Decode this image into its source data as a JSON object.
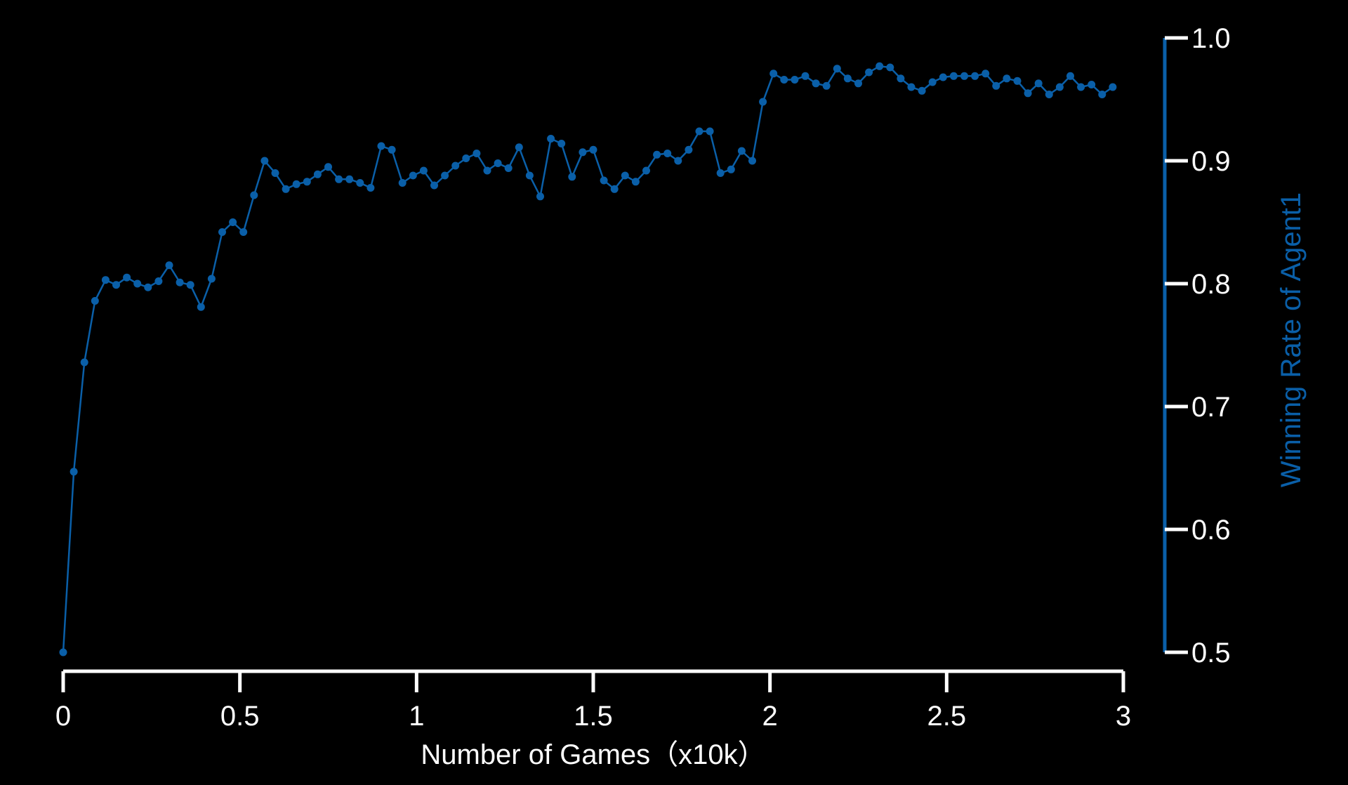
{
  "colors": {
    "background": "#000000",
    "axis": "#ffffff",
    "series": "#0a5fa8",
    "right_axis": "#0a5fa8",
    "right_axis_label": "#0a5fa8"
  },
  "chart_data": {
    "type": "line",
    "title": "",
    "xlabel": "Number of Games（x10k）",
    "ylabel": "Winning Rate of Agent1",
    "y_axis_side": "right",
    "xlim": [
      0,
      3
    ],
    "ylim": [
      0.5,
      1.0
    ],
    "x_ticks": [
      0,
      0.5,
      1,
      1.5,
      2,
      2.5,
      3
    ],
    "x_tick_labels": [
      "0",
      "0.5",
      "1",
      "1.5",
      "2",
      "2.5",
      "3"
    ],
    "y_ticks": [
      0.5,
      0.6,
      0.7,
      0.8,
      0.9,
      1.0
    ],
    "y_tick_labels": [
      "0.5",
      "0.6",
      "0.7",
      "0.8",
      "0.9",
      "1.0"
    ],
    "grid": false,
    "legend": "none",
    "marker": "circle",
    "series": [
      {
        "x": [
          0,
          0.03,
          0.06,
          0.09,
          0.12,
          0.15,
          0.18,
          0.21,
          0.24,
          0.27,
          0.3,
          0.33,
          0.36,
          0.39,
          0.42,
          0.45,
          0.48,
          0.51,
          0.54,
          0.57,
          0.6,
          0.63,
          0.66,
          0.69,
          0.72,
          0.75,
          0.78,
          0.81,
          0.84,
          0.87,
          0.9,
          0.93,
          0.96,
          0.99,
          1.02,
          1.05,
          1.08,
          1.11,
          1.14,
          1.17,
          1.2,
          1.23,
          1.26,
          1.29,
          1.32,
          1.35,
          1.38,
          1.41,
          1.44,
          1.47,
          1.5,
          1.53,
          1.56,
          1.59,
          1.62,
          1.65,
          1.68,
          1.71,
          1.74,
          1.77,
          1.8,
          1.83,
          1.86,
          1.89,
          1.92,
          1.95,
          1.98,
          2.01,
          2.04,
          2.07,
          2.1,
          2.13,
          2.16,
          2.19,
          2.22,
          2.25,
          2.28,
          2.31,
          2.34,
          2.37,
          2.4,
          2.43,
          2.46,
          2.49,
          2.52,
          2.55,
          2.58,
          2.61,
          2.64,
          2.67,
          2.7,
          2.73,
          2.76,
          2.79,
          2.82,
          2.85,
          2.88,
          2.91,
          2.94,
          2.97
        ],
        "values": [
          0.5,
          0.647,
          0.736,
          0.786,
          0.803,
          0.799,
          0.805,
          0.8,
          0.797,
          0.802,
          0.815,
          0.801,
          0.799,
          0.781,
          0.804,
          0.842,
          0.85,
          0.842,
          0.872,
          0.9,
          0.89,
          0.877,
          0.881,
          0.883,
          0.889,
          0.895,
          0.885,
          0.885,
          0.882,
          0.878,
          0.912,
          0.909,
          0.882,
          0.888,
          0.892,
          0.88,
          0.888,
          0.896,
          0.902,
          0.906,
          0.892,
          0.898,
          0.894,
          0.911,
          0.888,
          0.871,
          0.918,
          0.914,
          0.887,
          0.907,
          0.909,
          0.884,
          0.877,
          0.888,
          0.883,
          0.892,
          0.905,
          0.906,
          0.9,
          0.909,
          0.924,
          0.924,
          0.89,
          0.893,
          0.908,
          0.9,
          0.948,
          0.971,
          0.966,
          0.966,
          0.969,
          0.963,
          0.961,
          0.975,
          0.967,
          0.963,
          0.972,
          0.977,
          0.976,
          0.967,
          0.96,
          0.957,
          0.964,
          0.968,
          0.969,
          0.969,
          0.969,
          0.971,
          0.961,
          0.967,
          0.965,
          0.955,
          0.963,
          0.954,
          0.96,
          0.969,
          0.96,
          0.962,
          0.954,
          0.96
        ]
      }
    ]
  }
}
